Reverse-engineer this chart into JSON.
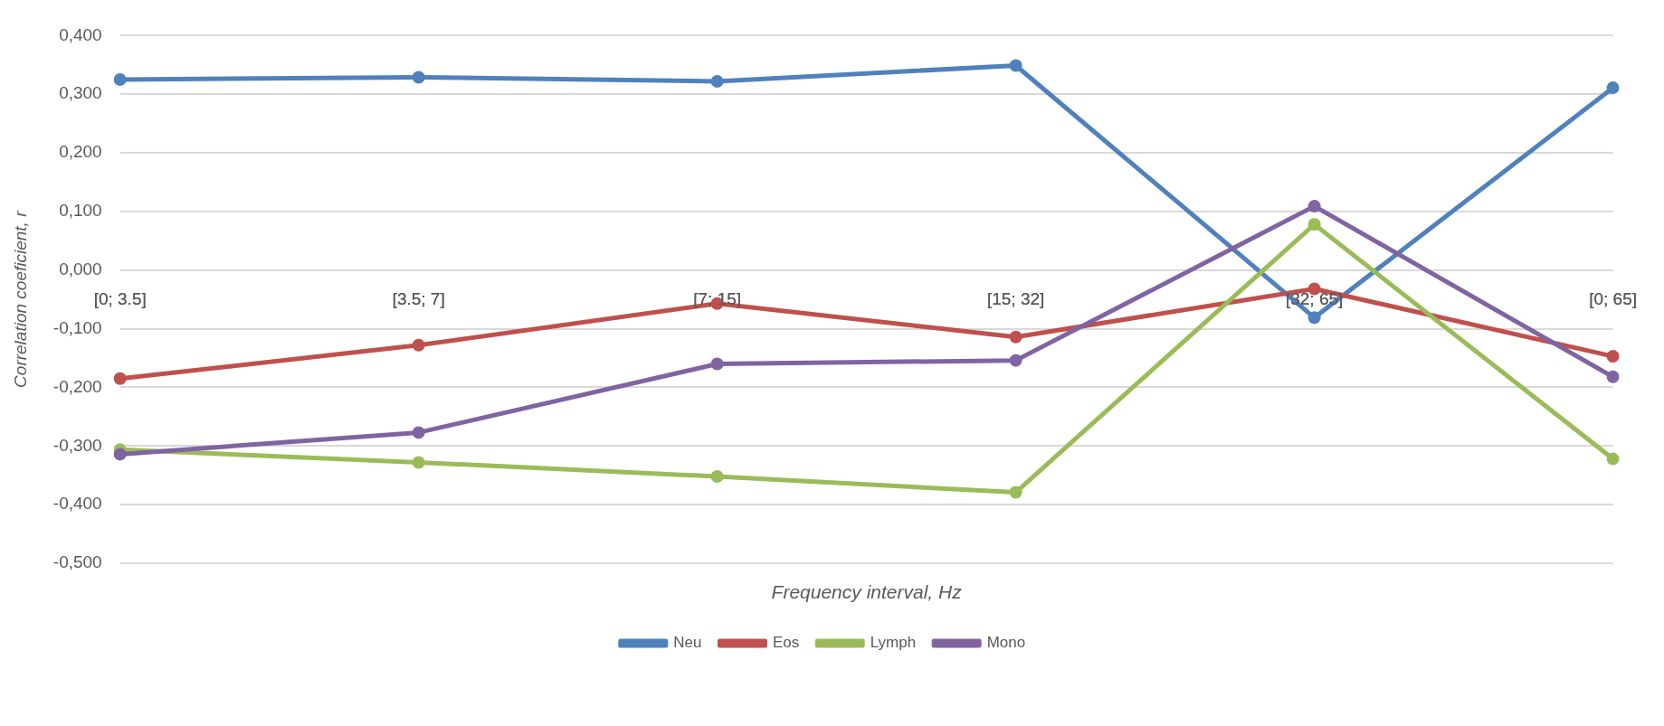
{
  "chart_data": {
    "type": "line",
    "xlabel": "Frequency interval, Hz",
    "ylabel": "Correlation coeficient, r",
    "categories": [
      "[0; 3.5]",
      "[3.5; 7]",
      "[7; 15]",
      "[15; 32]",
      "[32; 65]",
      "[0; 65]"
    ],
    "series": [
      {
        "name": "Neu",
        "color": "#4f81bd",
        "values": [
          0.325,
          0.329,
          0.322,
          0.349,
          -0.081,
          0.311
        ]
      },
      {
        "name": "Eos",
        "color": "#c0504d",
        "values": [
          -0.185,
          -0.128,
          -0.057,
          -0.114,
          -0.032,
          -0.147
        ]
      },
      {
        "name": "Lymph",
        "color": "#9bbb59",
        "values": [
          -0.306,
          -0.328,
          -0.352,
          -0.379,
          0.078,
          -0.322
        ]
      },
      {
        "name": "Mono",
        "color": "#8064a2",
        "values": [
          -0.314,
          -0.277,
          -0.16,
          -0.154,
          0.109,
          -0.182
        ]
      }
    ],
    "ylim": [
      -0.5,
      0.4
    ],
    "yticks": [
      {
        "value": -0.5,
        "label": "-0,500"
      },
      {
        "value": -0.4,
        "label": "-0,400"
      },
      {
        "value": -0.3,
        "label": "-0,300"
      },
      {
        "value": -0.2,
        "label": "-0,200"
      },
      {
        "value": -0.1,
        "label": "-0,100"
      },
      {
        "value": 0,
        "label": "0,000"
      },
      {
        "value": 0.1,
        "label": "0,100"
      },
      {
        "value": 0.2,
        "label": "0,200"
      },
      {
        "value": 0.3,
        "label": "0,300"
      },
      {
        "value": 0.4,
        "label": "0,400"
      }
    ],
    "grid": "y",
    "legend": "bottom",
    "marker": "circle",
    "line_style": "solid"
  }
}
